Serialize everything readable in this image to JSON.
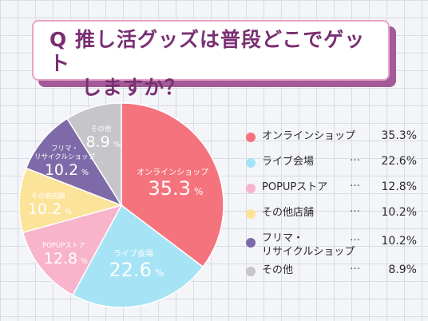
{
  "title": {
    "line1": "Q 推し活グッズは普段どこでゲット",
    "line2": "しますか？"
  },
  "chart_data": {
    "type": "pie",
    "categories": [
      "オンラインショップ",
      "ライブ会場",
      "POPUPストア",
      "その他店舗",
      "フリマ・リサイクルショップ",
      "その他"
    ],
    "legend_labels": [
      "オンラインショップ",
      "ライブ会場",
      "POPUPストア",
      "その他店舗",
      "フリマ・\nリサイクルショップ",
      "その他"
    ],
    "slice_labels": [
      "オンラインショップ",
      "ライブ会場",
      "POPUPストア",
      "その他店舗",
      "フリマ・\nリサイクルショップ",
      "その他"
    ],
    "values": [
      35.3,
      22.6,
      12.8,
      10.2,
      10.2,
      8.9
    ],
    "value_texts": [
      "35.3%",
      "22.6%",
      "12.8%",
      "10.2%",
      "10.2%",
      "8.9%"
    ],
    "slice_number_texts": [
      "35.3",
      "22.6",
      "12.8",
      "10.2",
      "10.2",
      "8.9"
    ],
    "percent_sign": "%",
    "legend_dots": "…",
    "colors": [
      "#f4737d",
      "#a6e3f5",
      "#f8b4cb",
      "#fce39a",
      "#7e6aa8",
      "#c5c5ca"
    ],
    "label_colors": [
      "#ffffff",
      "#ffffff",
      "#ffffff",
      "#ffffff",
      "#ffffff",
      "#ffffff"
    ],
    "start": "12 o'clock",
    "direction": "clockwise",
    "legend_position": "right"
  }
}
